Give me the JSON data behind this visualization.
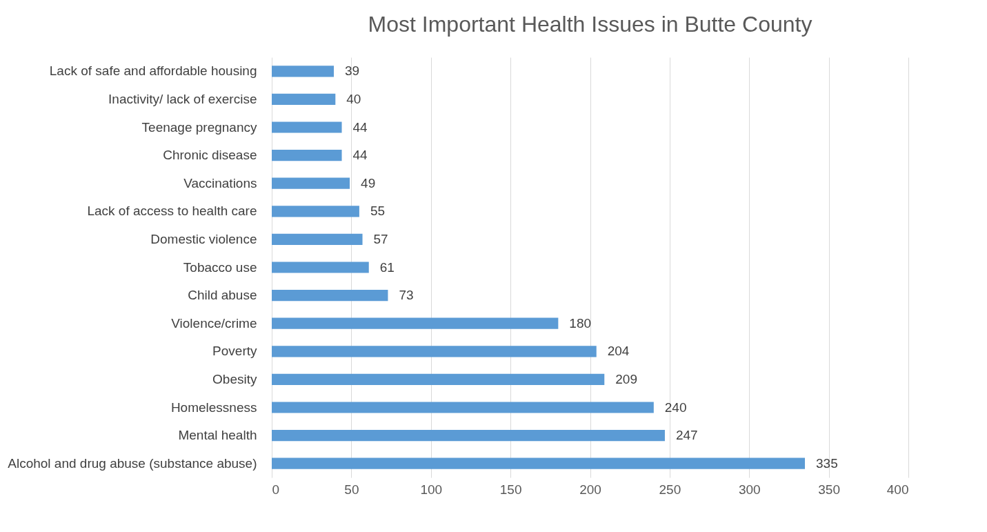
{
  "chart_data": {
    "type": "bar",
    "orientation": "horizontal",
    "title": "Most Important Health Issues in Butte County",
    "categories": [
      "Lack of safe and affordable housing",
      "Inactivity/ lack of exercise",
      "Teenage pregnancy",
      "Chronic disease",
      "Vaccinations",
      "Lack of access to health care",
      "Domestic violence",
      "Tobacco use",
      "Child abuse",
      "Violence/crime",
      "Poverty",
      "Obesity",
      "Homelessness",
      "Mental health",
      "Alcohol and drug abuse (substance abuse)"
    ],
    "values": [
      39,
      40,
      44,
      44,
      49,
      55,
      57,
      61,
      73,
      180,
      204,
      209,
      240,
      247,
      335
    ],
    "color": "#5b9bd5",
    "xlim": [
      0,
      400
    ],
    "xticks": [
      0,
      50,
      100,
      150,
      200,
      250,
      300,
      350,
      400
    ],
    "grid": "x",
    "data_labels": true
  }
}
